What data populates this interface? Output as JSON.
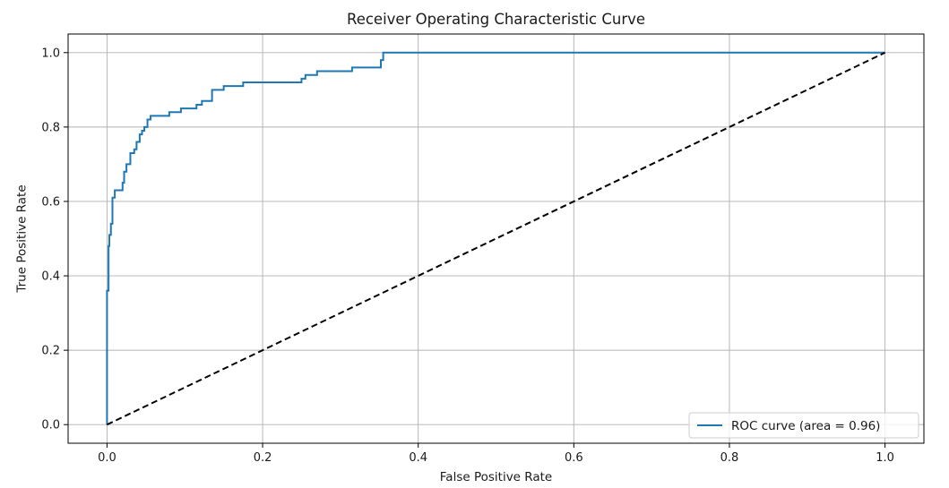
{
  "chart_data": {
    "type": "line",
    "title": "Receiver Operating Characteristic Curve",
    "xlabel": "False Positive Rate",
    "ylabel": "True Positive Rate",
    "xlim": [
      -0.05,
      1.05
    ],
    "ylim": [
      -0.05,
      1.05
    ],
    "xticks": [
      0.0,
      0.2,
      0.4,
      0.6,
      0.8,
      1.0
    ],
    "xtick_labels": [
      "0.0",
      "0.2",
      "0.4",
      "0.6",
      "0.8",
      "1.0"
    ],
    "yticks": [
      0.0,
      0.2,
      0.4,
      0.6,
      0.8,
      1.0
    ],
    "ytick_labels": [
      "0.0",
      "0.2",
      "0.4",
      "0.6",
      "0.8",
      "1.0"
    ],
    "grid": true,
    "legend_position": "lower-right",
    "series": [
      {
        "name": "ROC curve (area = 0.96)",
        "color": "#1f77b4",
        "style": "solid",
        "x": [
          0.0,
          0.0,
          0.002,
          0.002,
          0.003,
          0.003,
          0.005,
          0.005,
          0.007,
          0.007,
          0.01,
          0.01,
          0.02,
          0.02,
          0.022,
          0.022,
          0.025,
          0.025,
          0.03,
          0.03,
          0.035,
          0.035,
          0.038,
          0.038,
          0.042,
          0.042,
          0.045,
          0.045,
          0.048,
          0.048,
          0.052,
          0.052,
          0.056,
          0.056,
          0.08,
          0.08,
          0.095,
          0.095,
          0.115,
          0.115,
          0.122,
          0.122,
          0.135,
          0.135,
          0.15,
          0.15,
          0.175,
          0.175,
          0.25,
          0.25,
          0.255,
          0.255,
          0.27,
          0.27,
          0.315,
          0.315,
          0.352,
          0.352,
          0.355,
          0.355,
          1.0
        ],
        "y": [
          0.0,
          0.36,
          0.36,
          0.48,
          0.48,
          0.51,
          0.51,
          0.54,
          0.54,
          0.61,
          0.61,
          0.63,
          0.63,
          0.65,
          0.65,
          0.68,
          0.68,
          0.7,
          0.7,
          0.73,
          0.73,
          0.74,
          0.74,
          0.76,
          0.76,
          0.78,
          0.78,
          0.79,
          0.79,
          0.8,
          0.8,
          0.82,
          0.82,
          0.83,
          0.83,
          0.84,
          0.84,
          0.85,
          0.85,
          0.86,
          0.86,
          0.87,
          0.87,
          0.9,
          0.9,
          0.91,
          0.91,
          0.92,
          0.92,
          0.93,
          0.93,
          0.94,
          0.94,
          0.95,
          0.95,
          0.96,
          0.96,
          0.98,
          0.98,
          1.0,
          1.0
        ]
      },
      {
        "color": "#000000",
        "style": "dashed",
        "x": [
          0.0,
          1.0
        ],
        "y": [
          0.0,
          1.0
        ]
      }
    ]
  }
}
